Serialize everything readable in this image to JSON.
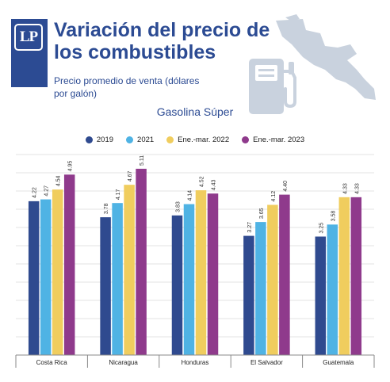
{
  "header": {
    "logo_text": "LP",
    "title": "Variación del precio de los combustibles",
    "subtitle": "Precio promedio de venta (dólares por galón)"
  },
  "colors": {
    "brand": "#2c4b93",
    "series": [
      "#2f4a8f",
      "#4fb3e4",
      "#f0cd5e",
      "#8f3a8c"
    ],
    "decor": "#c9d2de"
  },
  "chart_data": {
    "type": "bar",
    "title": "Gasolina Súper",
    "categories": [
      "Costa Rica",
      "Nicaragua",
      "Honduras",
      "El Salvador",
      "Guatemala"
    ],
    "series": [
      {
        "name": "2019",
        "values": [
          4.22,
          3.78,
          3.83,
          3.27,
          3.25
        ]
      },
      {
        "name": "2021",
        "values": [
          4.27,
          4.17,
          4.14,
          3.65,
          3.58
        ]
      },
      {
        "name": "Ene.-mar. 2022",
        "values": [
          4.54,
          4.67,
          4.52,
          4.12,
          4.33
        ]
      },
      {
        "name": "Ene.-mar. 2023",
        "values": [
          4.95,
          5.11,
          4.43,
          4.4,
          4.33
        ]
      }
    ],
    "value_labels": [
      [
        "4.22",
        "4.27",
        "4.54",
        "4.95"
      ],
      [
        "3.78",
        "4.17",
        "4.67",
        "5.11"
      ],
      [
        "3.83",
        "4.14",
        "4.52",
        "4.43"
      ],
      [
        "3.27",
        "3.65",
        "4.12",
        "4.40"
      ],
      [
        "3.25",
        "3.58",
        "4.33",
        "4.33"
      ]
    ],
    "ylim": [
      0,
      5.5
    ],
    "grid": true,
    "legend": "top-center"
  }
}
